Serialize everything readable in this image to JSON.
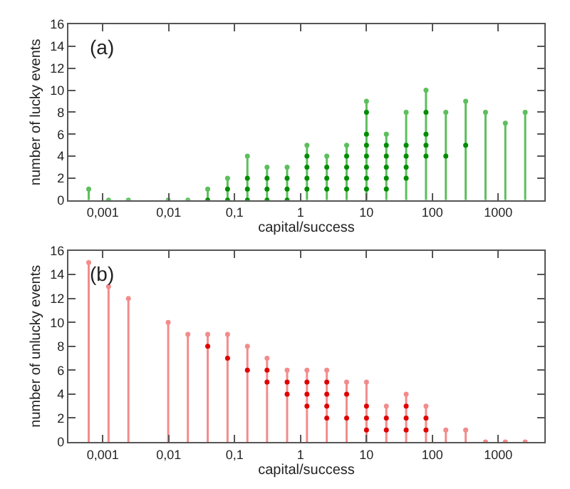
{
  "chart_data": [
    {
      "type": "lollipop",
      "xlabel": "capital/success",
      "ylabel": "number of lucky events",
      "annotations": [
        "(a)"
      ],
      "log": "x",
      "marker": "circle",
      "xlim": [
        0.0003,
        5000
      ],
      "xticks": [
        {
          "value": 0.001,
          "label": "0,001"
        },
        {
          "value": 0.01,
          "label": "0,01"
        },
        {
          "value": 0.1,
          "label": "0,1"
        },
        1,
        10,
        100,
        1000
      ],
      "ylim": [
        0,
        16
      ],
      "yticks": [
        0,
        2,
        4,
        6,
        8,
        10,
        12,
        14,
        16
      ],
      "series": [
        {
          "color": "#5cbf5c",
          "x": [
            0.00061,
            0.00122,
            0.00244,
            0.0049,
            0.0098,
            0.0195,
            0.039,
            0.078,
            0.156,
            0.31,
            0.625,
            1.25,
            2.5,
            5,
            10,
            20,
            40,
            80,
            160,
            320,
            640,
            1280,
            2560
          ],
          "values": [
            1,
            0,
            0,
            null,
            0,
            0,
            1,
            2,
            4,
            3,
            3,
            5,
            4,
            5,
            9,
            6,
            8,
            10,
            8,
            9,
            8,
            7,
            8
          ]
        },
        {
          "type": "scatter",
          "color": "#008c00",
          "x": [
            0.039,
            0.078,
            0.078,
            0.156,
            0.156,
            0.156,
            0.31,
            0.31,
            0.31,
            0.625,
            0.625,
            0.625,
            1.25,
            1.25,
            1.25,
            1.25,
            2.5,
            2.5,
            2.5,
            5,
            5,
            5,
            5,
            10,
            10,
            10,
            10,
            10,
            10,
            10,
            20,
            20,
            20,
            20,
            20,
            40,
            40,
            40,
            40,
            80,
            80,
            80,
            80,
            160,
            320
          ],
          "values": [
            0,
            1,
            0,
            2,
            1,
            0,
            2,
            1,
            0,
            2,
            1,
            0,
            4,
            3,
            2,
            1,
            3,
            2,
            1,
            4,
            3,
            2,
            1,
            8,
            6,
            5,
            4,
            3,
            2,
            1,
            5,
            4,
            3,
            2,
            1,
            5,
            4,
            3,
            2,
            8,
            6,
            5,
            4,
            4,
            5
          ]
        }
      ]
    },
    {
      "type": "lollipop",
      "xlabel": "capital/success",
      "ylabel": "number of unlucky events",
      "annotations": [
        "(b)"
      ],
      "log": "x",
      "marker": "circle",
      "xlim": [
        0.0003,
        5000
      ],
      "xticks": [
        {
          "value": 0.001,
          "label": "0,001"
        },
        {
          "value": 0.01,
          "label": "0,01"
        },
        {
          "value": 0.1,
          "label": "0,1"
        },
        1,
        10,
        100,
        1000
      ],
      "ylim": [
        0,
        16
      ],
      "yticks": [
        0,
        2,
        4,
        6,
        8,
        10,
        12,
        14,
        16
      ],
      "series": [
        {
          "color": "#f28c8c",
          "x": [
            0.00061,
            0.00122,
            0.00244,
            0.0049,
            0.0098,
            0.0195,
            0.039,
            0.078,
            0.156,
            0.31,
            0.625,
            1.25,
            2.5,
            5,
            10,
            20,
            40,
            80,
            160,
            320,
            640,
            1280,
            2560
          ],
          "values": [
            15,
            13,
            12,
            null,
            10,
            9,
            9,
            9,
            8,
            7,
            6,
            6,
            6,
            5,
            5,
            3,
            4,
            3,
            1,
            1,
            0,
            0,
            0
          ]
        },
        {
          "type": "scatter",
          "color": "#e00000",
          "x": [
            0.039,
            0.078,
            0.156,
            0.31,
            0.31,
            0.625,
            0.625,
            1.25,
            1.25,
            1.25,
            2.5,
            2.5,
            2.5,
            2.5,
            5,
            5,
            10,
            10,
            10,
            20,
            20,
            40,
            40,
            40,
            80,
            80
          ],
          "values": [
            8,
            7,
            6,
            6,
            5,
            5,
            4,
            5,
            4,
            3,
            5,
            4,
            3,
            2,
            4,
            2,
            3,
            2,
            1,
            2,
            1,
            3,
            2,
            1,
            2,
            1
          ]
        }
      ]
    }
  ]
}
